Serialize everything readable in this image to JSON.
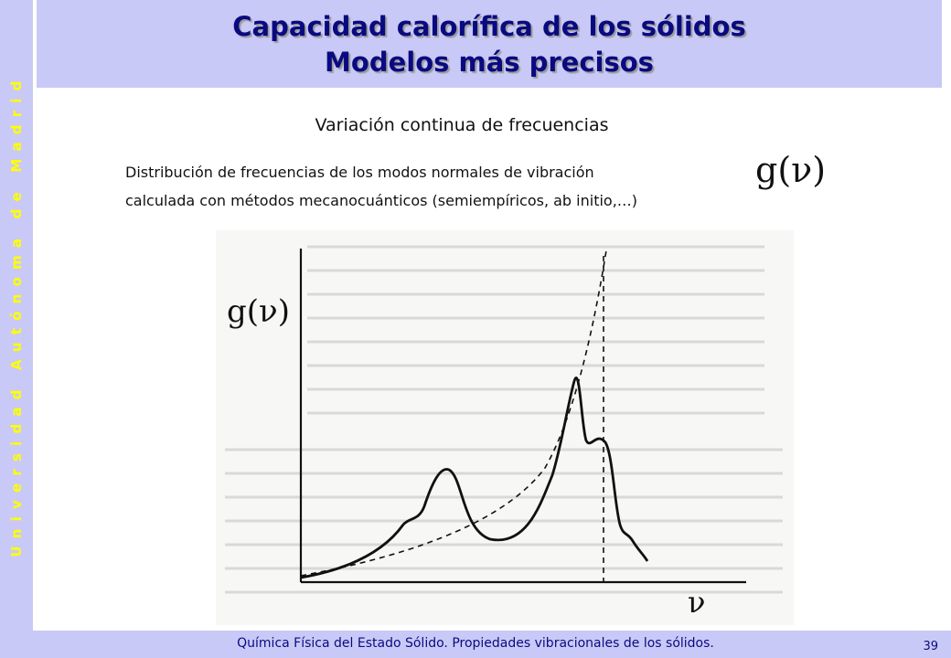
{
  "sidebar": {
    "text": "Universidad Autónoma de Madrid"
  },
  "header": {
    "title_line1": "Capacidad calorífica de los sólidos",
    "title_line2": "Modelos más precisos"
  },
  "content": {
    "subheading": "Variación continua de frecuencias",
    "description_line1": "Distribución de frecuencias de los modos normales de vibración",
    "description_line2": "calculada con métodos mecanocuánticos (semiempíricos, ab initio,…)",
    "symbol": "g(ν)"
  },
  "figure": {
    "y_axis_label": "g(ν)",
    "x_axis_label": "ν",
    "curves": [
      "density of states g(ν) with peaks",
      "Debye approximation (dashed, parabolic)",
      "cutoff frequency (vertical dashed)"
    ]
  },
  "footer": {
    "text": "Química Física del Estado Sólido. Propiedades vibracionales de los sólidos.",
    "page_number": "39"
  },
  "colors": {
    "banner": "#c9c9f7",
    "title": "#0a0a80",
    "sidebar_text": "#ffff00"
  }
}
